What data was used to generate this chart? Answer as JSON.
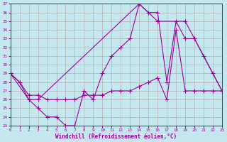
{
  "title": "",
  "xlabel": "Windchill (Refroidissement éolien,°C)",
  "ylabel": "",
  "bg_color": "#c5e8f0",
  "grid_color": "#b0b0b0",
  "line_color": "#990099",
  "ylim": [
    23,
    37
  ],
  "xlim": [
    0,
    23
  ],
  "yticks": [
    23,
    24,
    25,
    26,
    27,
    28,
    29,
    30,
    31,
    32,
    33,
    34,
    35,
    36,
    37
  ],
  "xticks": [
    0,
    1,
    2,
    3,
    4,
    5,
    6,
    7,
    8,
    9,
    10,
    11,
    12,
    13,
    14,
    15,
    16,
    17,
    18,
    19,
    20,
    21,
    22,
    23
  ],
  "line1_x": [
    0,
    1,
    2,
    3,
    4,
    5,
    6,
    7,
    8,
    9,
    10,
    11,
    12,
    13,
    14,
    15,
    16,
    17,
    18,
    19,
    20,
    21,
    22,
    23
  ],
  "line1_y": [
    29,
    28,
    26,
    25,
    24,
    24,
    23,
    23,
    27,
    26,
    29,
    31,
    32,
    33,
    37,
    36,
    36,
    28,
    35,
    33,
    33,
    31,
    29,
    27
  ],
  "line2_x": [
    0,
    1,
    2,
    3,
    4,
    5,
    6,
    7,
    8,
    9,
    10,
    11,
    12,
    13,
    14,
    15,
    16,
    17,
    18,
    19,
    20,
    21,
    22,
    23
  ],
  "line2_y": [
    29,
    28,
    26.5,
    26.5,
    26,
    26,
    26,
    26,
    26.5,
    26.5,
    26.5,
    27,
    27,
    27,
    27.5,
    28,
    28.5,
    26,
    34,
    27,
    27,
    27,
    27,
    27
  ],
  "line3_x": [
    0,
    2,
    3,
    14,
    16,
    19,
    20,
    23
  ],
  "line3_y": [
    29,
    26,
    26,
    37,
    35,
    35,
    33,
    27
  ]
}
